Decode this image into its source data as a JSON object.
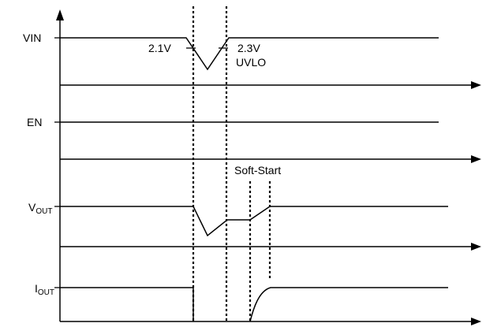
{
  "signals": {
    "vin": {
      "label": "VIN"
    },
    "en": {
      "label": "EN"
    },
    "vout": {
      "label_main": "V",
      "label_sub": "OUT"
    },
    "iout": {
      "label_main": "I",
      "label_sub": "OUT"
    }
  },
  "annotations": {
    "falling_threshold": "2.1V",
    "rising_threshold": "2.3V",
    "uvlo": "UVLO",
    "soft_start": "Soft-Start"
  }
}
